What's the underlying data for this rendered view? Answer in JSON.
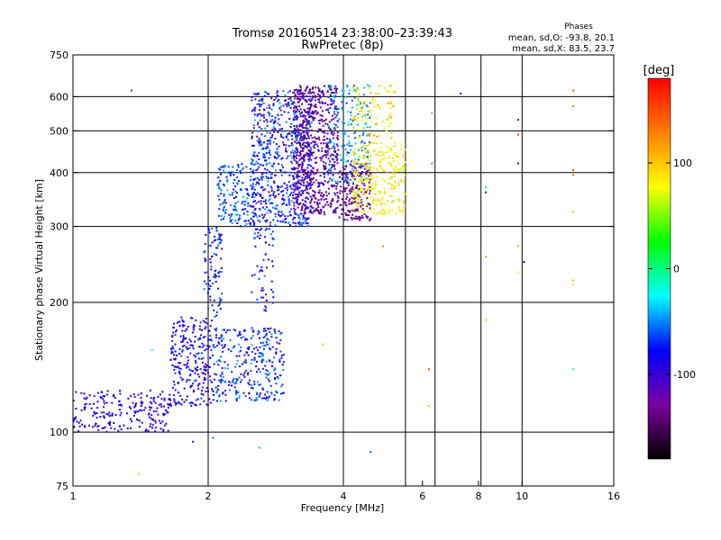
{
  "chart_data": {
    "type": "scatter",
    "title": "Tromsø 20160514 23:38:00–23:39:43",
    "subtitle": "RwPretec (8p)",
    "xlabel": "Frequency [MHz]",
    "ylabel": "Stationary phase Virtual Height [km]",
    "x_scale": "log",
    "y_scale": "log",
    "xlim": [
      1,
      16
    ],
    "ylim": [
      75,
      750
    ],
    "x_ticks": [
      1,
      2,
      4,
      6,
      8,
      10,
      16
    ],
    "x_tick_labels": [
      "1",
      "2",
      "4",
      "6",
      "8",
      "10",
      "16"
    ],
    "x_grid": [
      2,
      4,
      5.5,
      6.4,
      8.1,
      10
    ],
    "y_ticks": [
      75,
      100,
      200,
      300,
      400,
      500,
      600,
      750
    ],
    "y_tick_labels": [
      "75",
      "100",
      "200",
      "300",
      "400",
      "500",
      "600",
      "750"
    ],
    "y_grid": [
      100,
      200,
      300,
      400,
      500,
      600
    ],
    "grid": true,
    "phases_note": {
      "title": "Phases",
      "line_o": "mean, sd,O: -93.8, 20.1",
      "line_x": "mean, sd,X: 83.5, 23.7"
    },
    "colorbar": {
      "label": "[deg]",
      "min": -180,
      "max": 180,
      "ticks": [
        100,
        0,
        -100
      ],
      "tick_labels": [
        "100",
        "0",
        "-100"
      ],
      "stops": [
        "#000000",
        "#7a00a0",
        "#0000ff",
        "#00ffff",
        "#00ff00",
        "#ffff00",
        "#ff8000",
        "#ff0000"
      ]
    },
    "clusters": [
      {
        "f": [
          1.0,
          1.65
        ],
        "h": [
          100,
          125
        ],
        "n": 220,
        "phase": [
          -110,
          -80
        ]
      },
      {
        "f": [
          1.65,
          2.05
        ],
        "h": [
          115,
          185
        ],
        "n": 260,
        "phase": [
          -110,
          -60
        ]
      },
      {
        "f": [
          2.05,
          2.95
        ],
        "h": [
          118,
          175
        ],
        "n": 320,
        "phase": [
          -105,
          -40
        ]
      },
      {
        "f": [
          1.95,
          2.15
        ],
        "h": [
          185,
          300
        ],
        "n": 90,
        "phase": [
          -100,
          -50
        ]
      },
      {
        "f": [
          2.5,
          2.8
        ],
        "h": [
          190,
          300
        ],
        "n": 60,
        "phase": [
          -100,
          -50
        ]
      },
      {
        "f": [
          2.1,
          2.55
        ],
        "h": [
          300,
          420
        ],
        "n": 160,
        "phase": [
          -90,
          -40
        ]
      },
      {
        "f": [
          2.5,
          3.4
        ],
        "h": [
          300,
          620
        ],
        "n": 700,
        "phase": [
          -120,
          -40
        ]
      },
      {
        "f": [
          3.1,
          3.9
        ],
        "h": [
          320,
          640
        ],
        "n": 650,
        "phase": [
          -150,
          -95
        ]
      },
      {
        "f": [
          3.9,
          4.6
        ],
        "h": [
          310,
          420
        ],
        "n": 200,
        "phase": [
          -150,
          -110
        ]
      },
      {
        "f": [
          3.7,
          4.6
        ],
        "h": [
          380,
          640
        ],
        "n": 180,
        "phase": [
          -70,
          -20
        ]
      },
      {
        "f": [
          4.2,
          5.5
        ],
        "h": [
          320,
          470
        ],
        "n": 260,
        "phase": [
          60,
          100
        ]
      },
      {
        "f": [
          4.2,
          5.2
        ],
        "h": [
          480,
          640
        ],
        "n": 90,
        "phase": [
          50,
          120
        ]
      }
    ],
    "outliers": [
      {
        "f": 1.35,
        "h": 620,
        "phase": -130
      },
      {
        "f": 1.4,
        "h": 80,
        "phase": 90
      },
      {
        "f": 1.5,
        "h": 155,
        "phase": -20
      },
      {
        "f": 1.85,
        "h": 95,
        "phase": -70
      },
      {
        "f": 2.05,
        "h": 97,
        "phase": -50
      },
      {
        "f": 2.6,
        "h": 92,
        "phase": -40
      },
      {
        "f": 4.6,
        "h": 90,
        "phase": -60
      },
      {
        "f": 3.6,
        "h": 160,
        "phase": 100
      },
      {
        "f": 4.9,
        "h": 270,
        "phase": 130
      },
      {
        "f": 6.3,
        "h": 550,
        "phase": 130
      },
      {
        "f": 6.3,
        "h": 420,
        "phase": 140
      },
      {
        "f": 6.2,
        "h": 140,
        "phase": 150
      },
      {
        "f": 6.2,
        "h": 115,
        "phase": 100
      },
      {
        "f": 7.3,
        "h": 610,
        "phase": -80
      },
      {
        "f": 8.3,
        "h": 370,
        "phase": 10
      },
      {
        "f": 8.3,
        "h": 360,
        "phase": -70
      },
      {
        "f": 8.3,
        "h": 255,
        "phase": 120
      },
      {
        "f": 8.3,
        "h": 182,
        "phase": 100
      },
      {
        "f": 9.8,
        "h": 530,
        "phase": -100
      },
      {
        "f": 9.8,
        "h": 490,
        "phase": 150
      },
      {
        "f": 9.8,
        "h": 420,
        "phase": -150
      },
      {
        "f": 9.8,
        "h": 270,
        "phase": 110
      },
      {
        "f": 9.8,
        "h": 235,
        "phase": 80
      },
      {
        "f": 10.1,
        "h": 248,
        "phase": -180
      },
      {
        "f": 13.0,
        "h": 620,
        "phase": 150
      },
      {
        "f": 13.0,
        "h": 570,
        "phase": 130
      },
      {
        "f": 13.0,
        "h": 405,
        "phase": 150
      },
      {
        "f": 13.0,
        "h": 395,
        "phase": 130
      },
      {
        "f": 13.0,
        "h": 325,
        "phase": 100
      },
      {
        "f": 13.0,
        "h": 225,
        "phase": 110
      },
      {
        "f": 13.0,
        "h": 220,
        "phase": 90
      },
      {
        "f": 13.0,
        "h": 140,
        "phase": -20
      }
    ]
  }
}
